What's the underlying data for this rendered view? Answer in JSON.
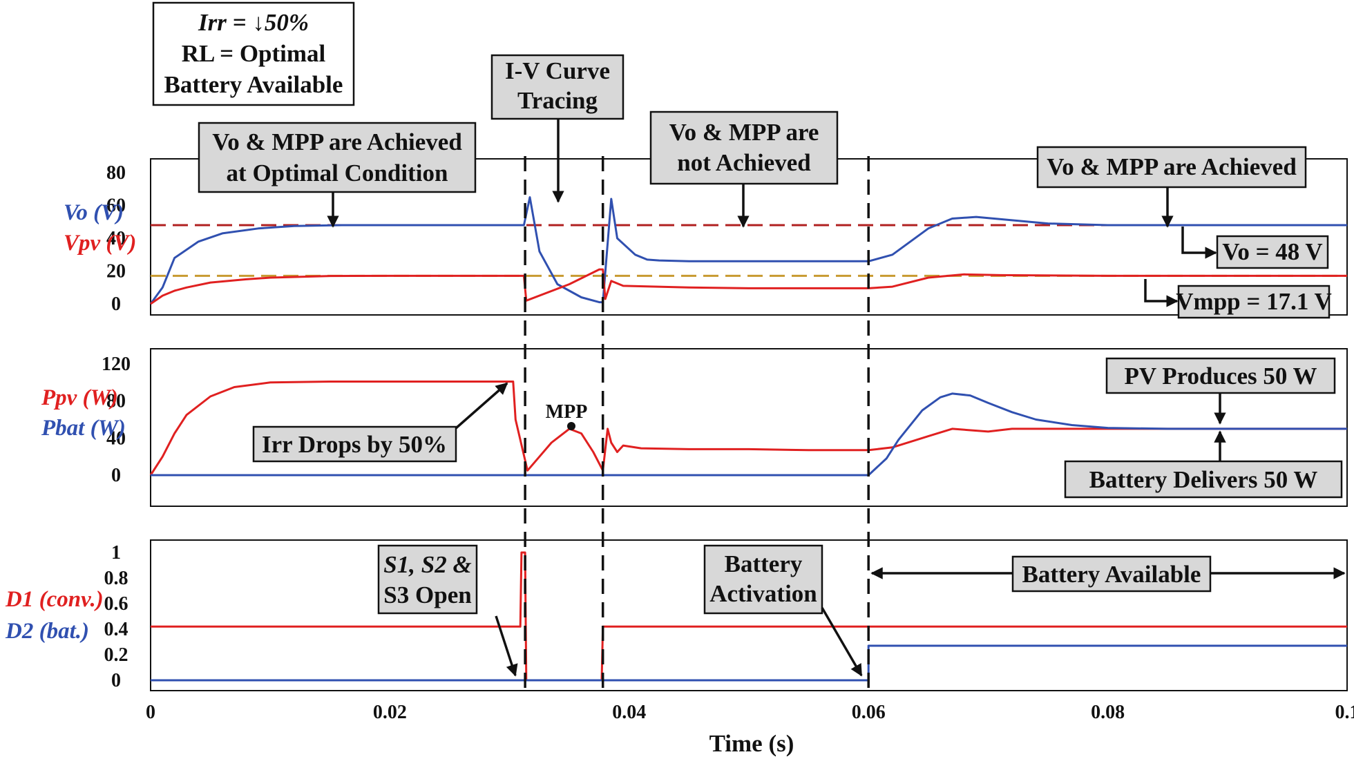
{
  "colors": {
    "vo": "#3050b0",
    "pv": "#e02020",
    "ref_vo": "#b02020",
    "ref_mpp": "#c89a30",
    "bat": "#3050b0"
  },
  "conditions": {
    "irr": "Irr = ↓50%",
    "rl": "RL = Optimal",
    "battery": "Battery Available"
  },
  "annotations": {
    "iv_tracing_1": "I-V Curve",
    "iv_tracing_2": "Tracing",
    "achieved_opt_1": "Vo & MPP are Achieved",
    "achieved_opt_2": "at Optimal Condition",
    "not_achieved_1": "Vo & MPP are",
    "not_achieved_2": "not Achieved",
    "achieved": "Vo & MPP are Achieved",
    "vo_ref": "Vo = 48 V",
    "vmpp_ref": "Vmpp = 17.1 V",
    "irr_drop": "Irr Drops by 50%",
    "mpp": "MPP",
    "pv_produces": "PV Produces 50 W",
    "bat_delivers": "Battery Delivers 50 W",
    "switches_1": "S1, S2 &",
    "switches_2": "S3 Open",
    "bat_act_1": "Battery",
    "bat_act_2": "Activation",
    "bat_avail": "Battery Available"
  },
  "chart_data": [
    {
      "type": "line",
      "ylabels": [
        "Vo (V)",
        "Vpv (V)"
      ],
      "yticks": [
        0,
        20,
        40,
        60,
        80
      ],
      "ylim": [
        0,
        95
      ],
      "series": [
        {
          "name": "Vo (V)",
          "color": "#3050b0",
          "x": [
            0,
            0.001,
            0.002,
            0.004,
            0.006,
            0.009,
            0.012,
            0.016,
            0.02,
            0.025,
            0.0312,
            0.0317,
            0.0325,
            0.034,
            0.036,
            0.0375,
            0.0378,
            0.0385,
            0.039,
            0.0405,
            0.0415,
            0.0425,
            0.045,
            0.05,
            0.055,
            0.06,
            0.062,
            0.065,
            0.067,
            0.069,
            0.072,
            0.075,
            0.08,
            0.09,
            0.1
          ],
          "y": [
            0,
            10,
            28,
            38,
            43,
            46,
            47.5,
            48,
            48,
            48,
            48,
            65,
            32,
            12,
            4,
            1,
            1,
            64,
            40,
            30,
            27,
            26.5,
            26,
            26,
            26,
            26,
            30,
            46,
            52,
            53,
            51,
            49,
            48,
            48,
            48
          ]
        },
        {
          "name": "Vpv (V)",
          "color": "#e02020",
          "x": [
            0,
            0.001,
            0.002,
            0.003,
            0.005,
            0.008,
            0.01,
            0.015,
            0.02,
            0.0312,
            0.0314,
            0.035,
            0.0375,
            0.0378,
            0.038,
            0.0385,
            0.0395,
            0.045,
            0.05,
            0.06,
            0.062,
            0.065,
            0.068,
            0.071,
            0.08,
            0.09,
            0.1
          ],
          "y": [
            0,
            5,
            8,
            10,
            13,
            15,
            16,
            17,
            17.1,
            17.1,
            2,
            12,
            21,
            21,
            3,
            14,
            11,
            10,
            9.5,
            9.5,
            10.5,
            16,
            18,
            17.5,
            17.1,
            17.1,
            17.1
          ]
        }
      ],
      "references": [
        {
          "label": "Vo = 48 V",
          "y": 48,
          "color": "#b02020"
        },
        {
          "label": "Vmpp = 17.1 V",
          "y": 17.1,
          "color": "#c89a30"
        }
      ]
    },
    {
      "type": "line",
      "ylabels": [
        "Ppv (W)",
        "Pbat (W)"
      ],
      "yticks": [
        0,
        40,
        80,
        120
      ],
      "ylim": [
        -20,
        130
      ],
      "series": [
        {
          "name": "Ppv (W)",
          "color": "#e02020",
          "x": [
            0,
            0.001,
            0.002,
            0.003,
            0.005,
            0.007,
            0.01,
            0.015,
            0.02,
            0.025,
            0.0303,
            0.0305,
            0.0315,
            0.0325,
            0.0335,
            0.035,
            0.036,
            0.037,
            0.0378,
            0.0382,
            0.0385,
            0.039,
            0.0395,
            0.041,
            0.045,
            0.05,
            0.055,
            0.06,
            0.062,
            0.065,
            0.067,
            0.07,
            0.072,
            0.075,
            0.08,
            0.09,
            0.1
          ],
          "y": [
            0,
            20,
            45,
            65,
            85,
            95,
            100,
            101,
            101,
            101,
            101,
            60,
            5,
            20,
            35,
            50,
            45,
            25,
            5,
            50,
            35,
            25,
            32,
            29,
            28,
            28,
            27,
            27,
            30,
            42,
            50,
            47,
            50,
            50,
            50,
            50,
            50
          ]
        },
        {
          "name": "Pbat (W)",
          "color": "#3050b0",
          "x": [
            0,
            0.06,
            0.0615,
            0.0625,
            0.0645,
            0.066,
            0.067,
            0.0685,
            0.07,
            0.072,
            0.074,
            0.077,
            0.08,
            0.085,
            0.09,
            0.1
          ],
          "y": [
            0,
            0,
            18,
            38,
            70,
            84,
            88,
            86,
            78,
            68,
            60,
            54,
            51,
            50,
            50,
            50
          ]
        }
      ]
    },
    {
      "type": "line",
      "ylabels": [
        "D1 (conv.)",
        "D2 (bat.)"
      ],
      "yticks": [
        0,
        0.2,
        0.4,
        0.6,
        0.8,
        1
      ],
      "ylim": [
        -0.1,
        1.1
      ],
      "series": [
        {
          "name": "D1 (conv.)",
          "color": "#e02020",
          "x": [
            0,
            0.0309,
            0.031,
            0.0313,
            0.0314,
            0.0377,
            0.0378,
            0.1
          ],
          "y": [
            0.42,
            0.42,
            1,
            1,
            0,
            0,
            0.42,
            0.42
          ]
        },
        {
          "name": "D2 (bat.)",
          "color": "#3050b0",
          "x": [
            0,
            0.06,
            0.06,
            0.1
          ],
          "y": [
            0,
            0,
            0.27,
            0.27
          ]
        }
      ]
    }
  ],
  "x_axis": {
    "label": "Time (s)",
    "ticks": [
      "0",
      "0.02",
      "0.04",
      "0.06",
      "0.08",
      "0.1"
    ],
    "xlim": [
      0,
      0.1
    ]
  },
  "markers": [
    0.0313,
    0.0378,
    0.06
  ]
}
